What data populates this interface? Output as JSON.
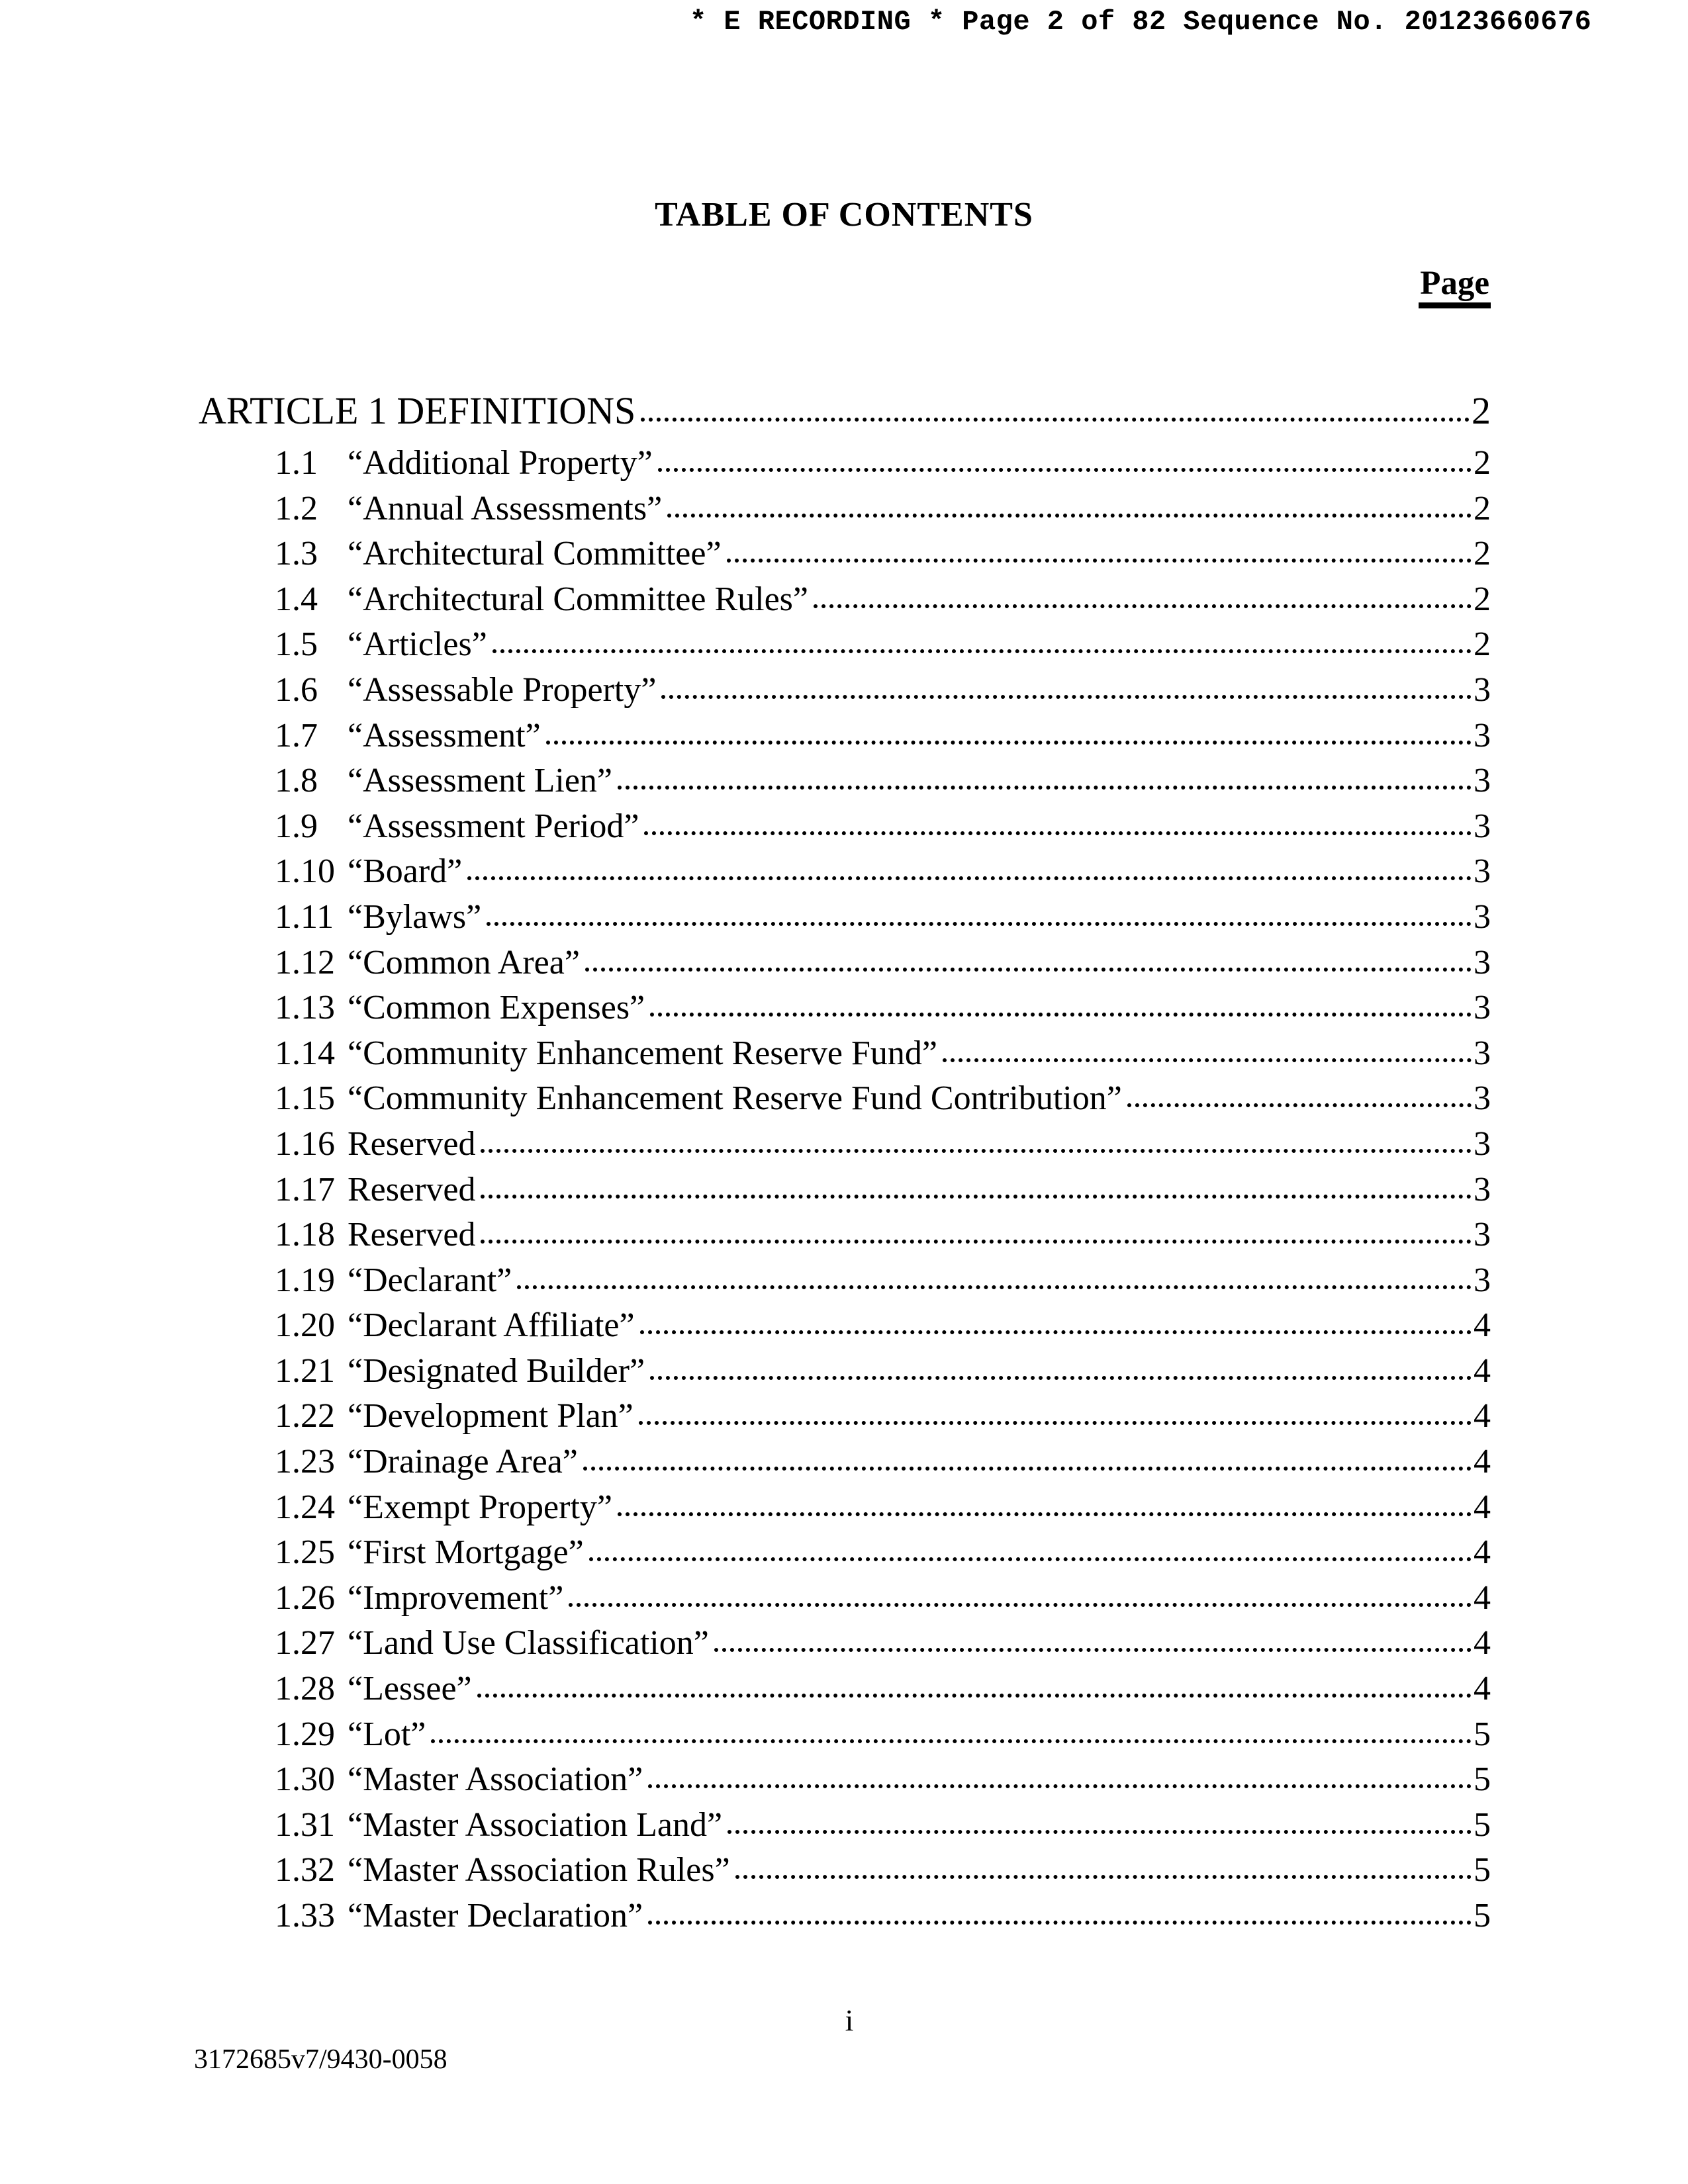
{
  "colors": {
    "text": "#000000",
    "background": "#ffffff"
  },
  "header": {
    "recording_line": "* E RECORDING * Page 2 of 82 Sequence No. 20123660676"
  },
  "title": "TABLE OF CONTENTS",
  "page_column_label": "Page",
  "toc": {
    "article": {
      "label": "ARTICLE 1 DEFINITIONS",
      "page": "2"
    },
    "entries": [
      {
        "num": "1.1",
        "title": "“Additional Property”",
        "page": "2"
      },
      {
        "num": "1.2",
        "title": "“Annual Assessments”",
        "page": "2"
      },
      {
        "num": "1.3",
        "title": "“Architectural Committee”",
        "page": "2"
      },
      {
        "num": "1.4",
        "title": "“Architectural Committee Rules”",
        "page": "2"
      },
      {
        "num": "1.5",
        "title": "“Articles”",
        "page": "2"
      },
      {
        "num": "1.6",
        "title": "“Assessable Property”",
        "page": "3"
      },
      {
        "num": "1.7",
        "title": "“Assessment”",
        "page": "3"
      },
      {
        "num": "1.8",
        "title": "“Assessment Lien”",
        "page": "3"
      },
      {
        "num": "1.9",
        "title": "“Assessment Period”",
        "page": "3"
      },
      {
        "num": "1.10",
        "title": "“Board”",
        "page": "3"
      },
      {
        "num": "1.11",
        "title": "“Bylaws”",
        "page": "3"
      },
      {
        "num": "1.12",
        "title": "“Common Area”",
        "page": "3"
      },
      {
        "num": "1.13",
        "title": "“Common Expenses”",
        "page": "3"
      },
      {
        "num": "1.14",
        "title": "“Community Enhancement Reserve Fund”",
        "page": "3"
      },
      {
        "num": "1.15",
        "title": "“Community Enhancement Reserve Fund Contribution”",
        "page": "3"
      },
      {
        "num": "1.16",
        "title": "Reserved",
        "page": "3"
      },
      {
        "num": "1.17",
        "title": "Reserved",
        "page": "3"
      },
      {
        "num": "1.18",
        "title": "Reserved",
        "page": "3"
      },
      {
        "num": "1.19",
        "title": "“Declarant”",
        "page": "3"
      },
      {
        "num": "1.20",
        "title": "“Declarant Affiliate”",
        "page": "4"
      },
      {
        "num": "1.21",
        "title": "“Designated Builder”",
        "page": "4"
      },
      {
        "num": "1.22",
        "title": "“Development Plan”",
        "page": "4"
      },
      {
        "num": "1.23",
        "title": "“Drainage Area”",
        "page": "4"
      },
      {
        "num": "1.24",
        "title": "“Exempt Property”",
        "page": "4"
      },
      {
        "num": "1.25",
        "title": "“First Mortgage”",
        "page": "4"
      },
      {
        "num": "1.26",
        "title": "“Improvement”",
        "page": "4"
      },
      {
        "num": "1.27",
        "title": "“Land Use Classification”",
        "page": "4"
      },
      {
        "num": "1.28",
        "title": "“Lessee”",
        "page": "4"
      },
      {
        "num": "1.29",
        "title": "“Lot”",
        "page": "5"
      },
      {
        "num": "1.30",
        "title": "“Master Association”",
        "page": "5"
      },
      {
        "num": "1.31",
        "title": "“Master Association Land”",
        "page": "5"
      },
      {
        "num": "1.32",
        "title": "“Master Association Rules”",
        "page": "5"
      },
      {
        "num": "1.33",
        "title": "“Master Declaration”",
        "page": "5"
      }
    ]
  },
  "footer": {
    "page_roman_numeral": "i",
    "document_number": "3172685v7/9430-0058"
  }
}
